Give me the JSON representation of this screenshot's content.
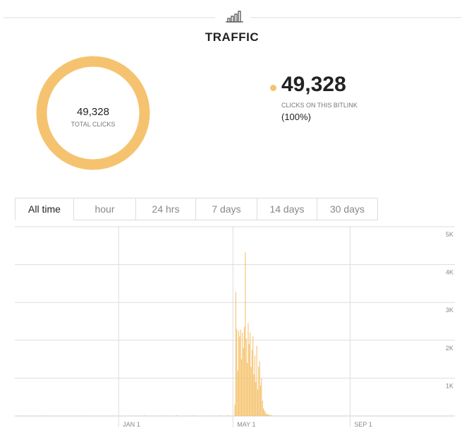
{
  "header": {
    "title": "TRAFFIC"
  },
  "summary": {
    "total": "49,328",
    "total_label": "TOTAL CLICKS",
    "clicks": "49,328",
    "clicks_label": "CLICKS ON THIS BITLINK",
    "share": "(100%)"
  },
  "tabs": {
    "items": [
      "All time",
      "hour",
      "24 hrs",
      "7 days",
      "14 days",
      "30 days"
    ],
    "active": 0
  },
  "chart_data": {
    "type": "bar",
    "color": "#f5c36f",
    "grid": true,
    "xlim": [
      -109,
      353
    ],
    "xticks": [
      {
        "value": 0,
        "label": "JAN 1"
      },
      {
        "value": 120,
        "label": "MAY 1"
      },
      {
        "value": 243,
        "label": "SEP 1"
      }
    ],
    "ylim": [
      0,
      5000
    ],
    "yticks": [
      {
        "value": 1000,
        "label": "1K"
      },
      {
        "value": 2000,
        "label": "2K"
      },
      {
        "value": 3000,
        "label": "3K"
      },
      {
        "value": 4000,
        "label": "4K"
      },
      {
        "value": 5000,
        "label": "5K"
      }
    ],
    "x": [
      -105,
      -77,
      -38,
      12,
      20,
      27,
      35,
      44,
      52,
      61,
      70,
      79,
      88,
      97,
      106,
      115,
      122,
      123,
      124,
      125,
      126,
      127,
      128,
      129,
      130,
      131,
      132,
      133,
      134,
      135,
      136,
      137,
      138,
      139,
      140,
      141,
      142,
      143,
      144,
      145,
      146,
      147,
      148,
      149,
      150,
      151,
      152,
      153,
      154,
      155,
      156,
      157,
      158,
      159,
      160,
      164
    ],
    "values": [
      10,
      15,
      10,
      15,
      12,
      18,
      10,
      15,
      12,
      20,
      15,
      18,
      12,
      15,
      20,
      25,
      300,
      3280,
      2300,
      1200,
      2250,
      2100,
      2280,
      1500,
      2200,
      1800,
      2350,
      4320,
      2050,
      1400,
      2450,
      1900,
      2200,
      1300,
      1750,
      2100,
      1100,
      1600,
      900,
      1850,
      700,
      1300,
      1450,
      800,
      1000,
      400,
      200,
      150,
      100,
      60,
      40,
      50,
      30,
      20,
      30,
      15
    ]
  }
}
